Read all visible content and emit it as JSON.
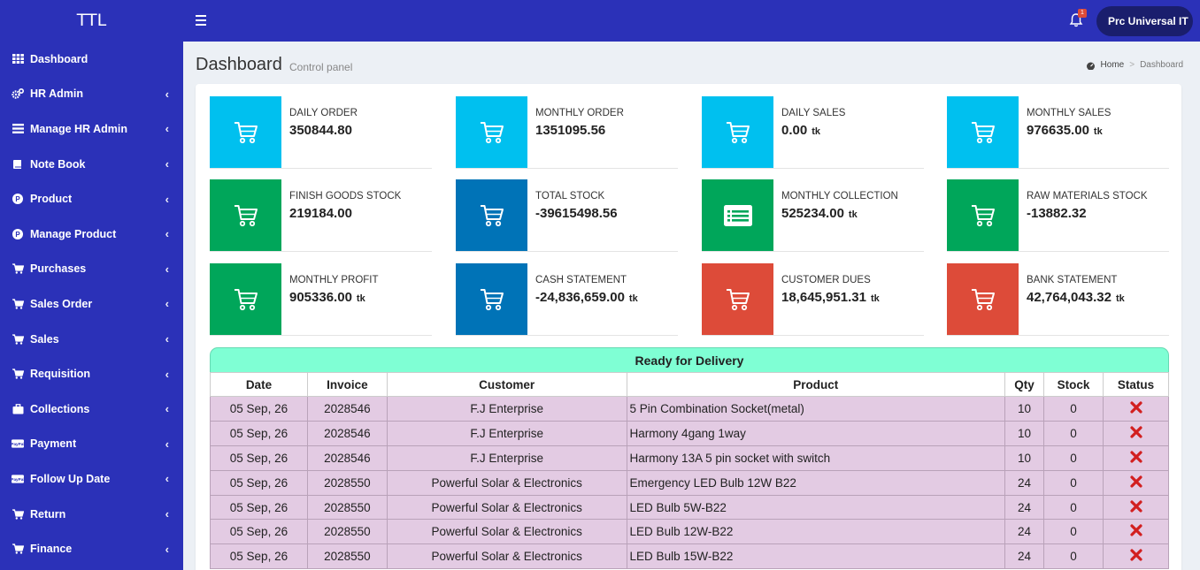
{
  "brand": "TTL",
  "sidebar": {
    "items": [
      {
        "label": "Dashboard",
        "icon": "grid-icon",
        "chevron": false
      },
      {
        "label": "HR Admin",
        "icon": "cogs-icon",
        "chevron": true
      },
      {
        "label": "Manage HR Admin",
        "icon": "list-icon",
        "chevron": true
      },
      {
        "label": "Note Book",
        "icon": "book-icon",
        "chevron": true
      },
      {
        "label": "Product",
        "icon": "p-circle-icon",
        "chevron": true
      },
      {
        "label": "Manage Product",
        "icon": "p-circle-icon",
        "chevron": true
      },
      {
        "label": "Purchases",
        "icon": "cart-icon",
        "chevron": true
      },
      {
        "label": "Sales Order",
        "icon": "cart-icon",
        "chevron": true
      },
      {
        "label": "Sales",
        "icon": "cart-icon",
        "chevron": true
      },
      {
        "label": "Requisition",
        "icon": "cart-icon",
        "chevron": true
      },
      {
        "label": "Collections",
        "icon": "briefcase-icon",
        "chevron": true
      },
      {
        "label": "Payment",
        "icon": "paypal-icon",
        "chevron": true
      },
      {
        "label": "Follow Up Date",
        "icon": "paypal-icon",
        "chevron": true
      },
      {
        "label": "Return",
        "icon": "cart-icon",
        "chevron": true
      },
      {
        "label": "Finance",
        "icon": "cart-icon",
        "chevron": true
      }
    ]
  },
  "topbar": {
    "notification_count": "1",
    "user_label": "Prc Universal IT"
  },
  "header": {
    "title": "Dashboard",
    "subtitle": "Control panel",
    "breadcrumb_home": "Home",
    "breadcrumb_current": "Dashboard"
  },
  "colors": {
    "sidebar": "#2b31b8",
    "aqua": "#00c0ef",
    "green": "#00a65a",
    "blue": "#0073b7",
    "red": "#dd4b39",
    "table_header": "#7fffd4",
    "table_row": "#e3cbe3"
  },
  "info_boxes": [
    {
      "label": "DAILY ORDER",
      "value": "350844.80",
      "unit": "",
      "color": "aqua",
      "icon": "cart-icon"
    },
    {
      "label": "MONTHLY ORDER",
      "value": "1351095.56",
      "unit": "",
      "color": "aqua",
      "icon": "cart-icon"
    },
    {
      "label": "DAILY SALES",
      "value": "0.00",
      "unit": "tk",
      "color": "aqua",
      "icon": "cart-icon"
    },
    {
      "label": "MONTHLY SALES",
      "value": "976635.00",
      "unit": "tk",
      "color": "aqua",
      "icon": "cart-icon"
    },
    {
      "label": "FINISH GOODS STOCK",
      "value": "219184.00",
      "unit": "",
      "color": "green",
      "icon": "cart-icon"
    },
    {
      "label": "TOTAL STOCK",
      "value": "-39615498.56",
      "unit": "",
      "color": "blue",
      "icon": "cart-icon"
    },
    {
      "label": "MONTHLY COLLECTION",
      "value": "525234.00",
      "unit": "tk",
      "color": "green",
      "icon": "list-alt-icon"
    },
    {
      "label": "RAW MATERIALS STOCK",
      "value": "-13882.32",
      "unit": "",
      "color": "green",
      "icon": "cart-icon"
    },
    {
      "label": "MONTHLY PROFIT",
      "value": "905336.00",
      "unit": "tk",
      "color": "green",
      "icon": "cart-icon"
    },
    {
      "label": "CASH STATEMENT",
      "value": "-24,836,659.00",
      "unit": "tk",
      "color": "blue",
      "icon": "cart-icon"
    },
    {
      "label": "CUSTOMER DUES",
      "value": "18,645,951.31",
      "unit": "tk",
      "color": "red",
      "icon": "cart-icon"
    },
    {
      "label": "BANK STATEMENT",
      "value": "42,764,043.32",
      "unit": "tk",
      "color": "red",
      "icon": "cart-icon"
    }
  ],
  "delivery": {
    "title": "Ready for Delivery",
    "columns": [
      "Date",
      "Invoice",
      "Customer",
      "Product",
      "Qty",
      "Stock",
      "Status"
    ],
    "rows": [
      [
        "05 Sep, 26",
        "2028546",
        "F.J Enterprise",
        "5 Pin Combination Socket(metal)",
        "10",
        "0"
      ],
      [
        "05 Sep, 26",
        "2028546",
        "F.J Enterprise",
        "Harmony 4gang 1way",
        "10",
        "0"
      ],
      [
        "05 Sep, 26",
        "2028546",
        "F.J Enterprise",
        "Harmony 13A 5 pin socket with switch",
        "10",
        "0"
      ],
      [
        "05 Sep, 26",
        "2028550",
        "Powerful Solar & Electronics",
        "Emergency LED Bulb 12W B22",
        "24",
        "0"
      ],
      [
        "05 Sep, 26",
        "2028550",
        "Powerful Solar & Electronics",
        "LED Bulb 5W-B22",
        "24",
        "0"
      ],
      [
        "05 Sep, 26",
        "2028550",
        "Powerful Solar & Electronics",
        "LED Bulb 12W-B22",
        "24",
        "0"
      ],
      [
        "05 Sep, 26",
        "2028550",
        "Powerful Solar & Electronics",
        "LED Bulb 15W-B22",
        "24",
        "0"
      ]
    ]
  }
}
